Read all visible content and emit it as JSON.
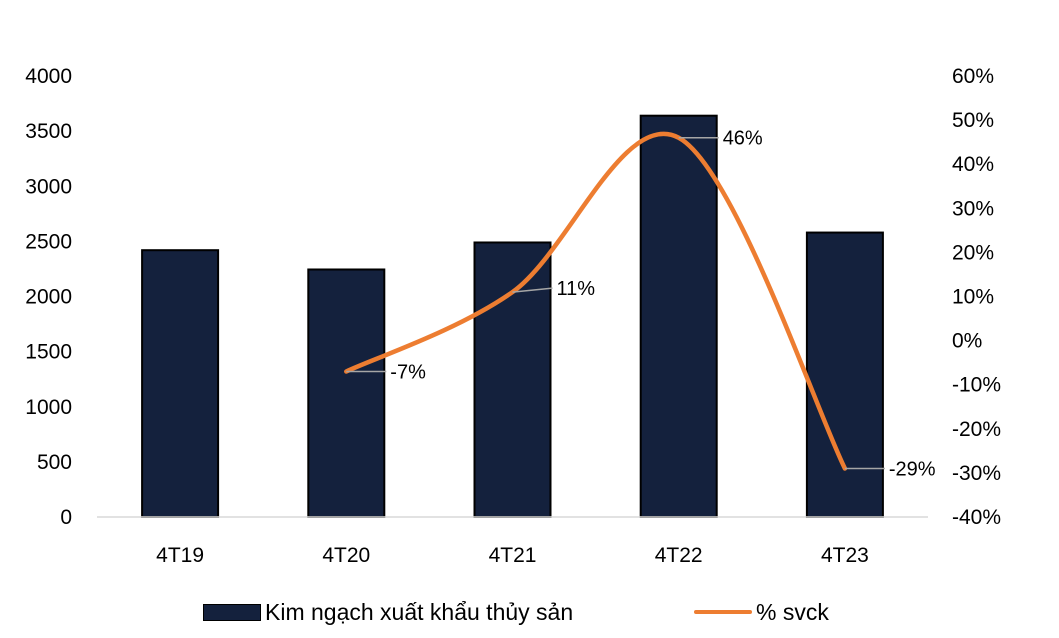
{
  "chart_data": {
    "type": "bar",
    "categories": [
      "4T19",
      "4T20",
      "4T21",
      "4T22",
      "4T23"
    ],
    "series": [
      {
        "name": "Kim ngạch xuất khẩu thủy sản",
        "type": "bar",
        "axis": "left",
        "values": [
          2420,
          2245,
          2490,
          3640,
          2580
        ],
        "color": "#14213D"
      },
      {
        "name": "% svck",
        "type": "line",
        "axis": "right",
        "values": [
          null,
          -7,
          11,
          46,
          -29
        ],
        "data_labels": [
          "",
          "-7%",
          "11%",
          "46%",
          "-29%"
        ],
        "color": "#ED7D31"
      }
    ],
    "y_left": {
      "ylim": [
        0,
        4000
      ],
      "ticks": [
        "0",
        "500",
        "1000",
        "1500",
        "2000",
        "2500",
        "3000",
        "3500",
        "4000"
      ]
    },
    "y_right": {
      "ylim": [
        -40,
        60
      ],
      "ticks": [
        "-40%",
        "-30%",
        "-20%",
        "-10%",
        "0%",
        "10%",
        "20%",
        "30%",
        "40%",
        "50%",
        "60%"
      ]
    },
    "title": "",
    "xlabel": "",
    "ylabel": "",
    "grid": false,
    "legend_position": "bottom"
  }
}
